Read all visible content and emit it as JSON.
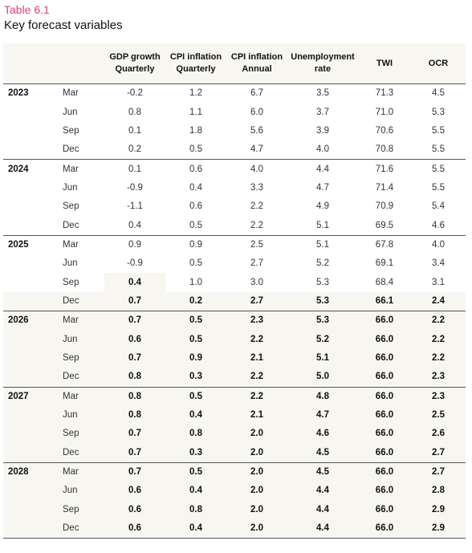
{
  "table_label": "Table 6.1",
  "table_title": "Key forecast variables",
  "columns": [
    {
      "line1": "GDP growth",
      "line2": "Quarterly"
    },
    {
      "line1": "CPI inflation",
      "line2": "Quarterly"
    },
    {
      "line1": "CPI inflation",
      "line2": "Annual"
    },
    {
      "line1": "Unemployment",
      "line2": "rate"
    },
    {
      "line1": "TWI",
      "line2": ""
    },
    {
      "line1": "OCR",
      "line2": ""
    }
  ],
  "rows": [
    {
      "year": "2023",
      "q": "Mar",
      "v": [
        "-0.2",
        "1.2",
        "6.7",
        "3.5",
        "71.3",
        "4.5"
      ]
    },
    {
      "year": "",
      "q": "Jun",
      "v": [
        "0.8",
        "1.1",
        "6.0",
        "3.7",
        "71.0",
        "5.3"
      ]
    },
    {
      "year": "",
      "q": "Sep",
      "v": [
        "0.1",
        "1.8",
        "5.6",
        "3.9",
        "70.6",
        "5.5"
      ]
    },
    {
      "year": "",
      "q": "Dec",
      "v": [
        "0.2",
        "0.5",
        "4.7",
        "4.0",
        "70.8",
        "5.5"
      ]
    },
    {
      "year": "2024",
      "q": "Mar",
      "v": [
        "0.1",
        "0.6",
        "4.0",
        "4.4",
        "71.6",
        "5.5"
      ]
    },
    {
      "year": "",
      "q": "Jun",
      "v": [
        "-0.9",
        "0.4",
        "3.3",
        "4.7",
        "71.4",
        "5.5"
      ]
    },
    {
      "year": "",
      "q": "Sep",
      "v": [
        "-1.1",
        "0.6",
        "2.2",
        "4.9",
        "70.9",
        "5.4"
      ]
    },
    {
      "year": "",
      "q": "Dec",
      "v": [
        "0.4",
        "0.5",
        "2.2",
        "5.1",
        "69.5",
        "4.6"
      ]
    },
    {
      "year": "2025",
      "q": "Mar",
      "v": [
        "0.9",
        "0.9",
        "2.5",
        "5.1",
        "67.8",
        "4.0"
      ]
    },
    {
      "year": "",
      "q": "Jun",
      "v": [
        "-0.9",
        "0.5",
        "2.7",
        "5.2",
        "69.1",
        "3.4"
      ]
    },
    {
      "year": "",
      "q": "Sep",
      "v": [
        "0.4",
        "1.0",
        "3.0",
        "5.3",
        "68.4",
        "3.1"
      ]
    },
    {
      "year": "",
      "q": "Dec",
      "v": [
        "0.7",
        "0.2",
        "2.7",
        "5.3",
        "66.1",
        "2.4"
      ]
    },
    {
      "year": "2026",
      "q": "Mar",
      "v": [
        "0.7",
        "0.5",
        "2.3",
        "5.3",
        "66.0",
        "2.2"
      ]
    },
    {
      "year": "",
      "q": "Jun",
      "v": [
        "0.6",
        "0.5",
        "2.2",
        "5.2",
        "66.0",
        "2.2"
      ]
    },
    {
      "year": "",
      "q": "Sep",
      "v": [
        "0.7",
        "0.9",
        "2.1",
        "5.1",
        "66.0",
        "2.2"
      ]
    },
    {
      "year": "",
      "q": "Dec",
      "v": [
        "0.8",
        "0.3",
        "2.2",
        "5.0",
        "66.0",
        "2.3"
      ]
    },
    {
      "year": "2027",
      "q": "Mar",
      "v": [
        "0.8",
        "0.5",
        "2.2",
        "4.8",
        "66.0",
        "2.3"
      ]
    },
    {
      "year": "",
      "q": "Jun",
      "v": [
        "0.8",
        "0.4",
        "2.1",
        "4.7",
        "66.0",
        "2.5"
      ]
    },
    {
      "year": "",
      "q": "Sep",
      "v": [
        "0.7",
        "0.8",
        "2.0",
        "4.6",
        "66.0",
        "2.6"
      ]
    },
    {
      "year": "",
      "q": "Dec",
      "v": [
        "0.7",
        "0.3",
        "2.0",
        "4.5",
        "66.0",
        "2.7"
      ]
    },
    {
      "year": "2028",
      "q": "Mar",
      "v": [
        "0.7",
        "0.5",
        "2.0",
        "4.5",
        "66.0",
        "2.7"
      ]
    },
    {
      "year": "",
      "q": "Jun",
      "v": [
        "0.6",
        "0.4",
        "2.0",
        "4.4",
        "66.0",
        "2.8"
      ]
    },
    {
      "year": "",
      "q": "Sep",
      "v": [
        "0.6",
        "0.8",
        "2.0",
        "4.4",
        "66.0",
        "2.9"
      ]
    },
    {
      "year": "",
      "q": "Dec",
      "v": [
        "0.6",
        "0.4",
        "2.0",
        "4.4",
        "66.0",
        "2.9"
      ]
    }
  ]
}
